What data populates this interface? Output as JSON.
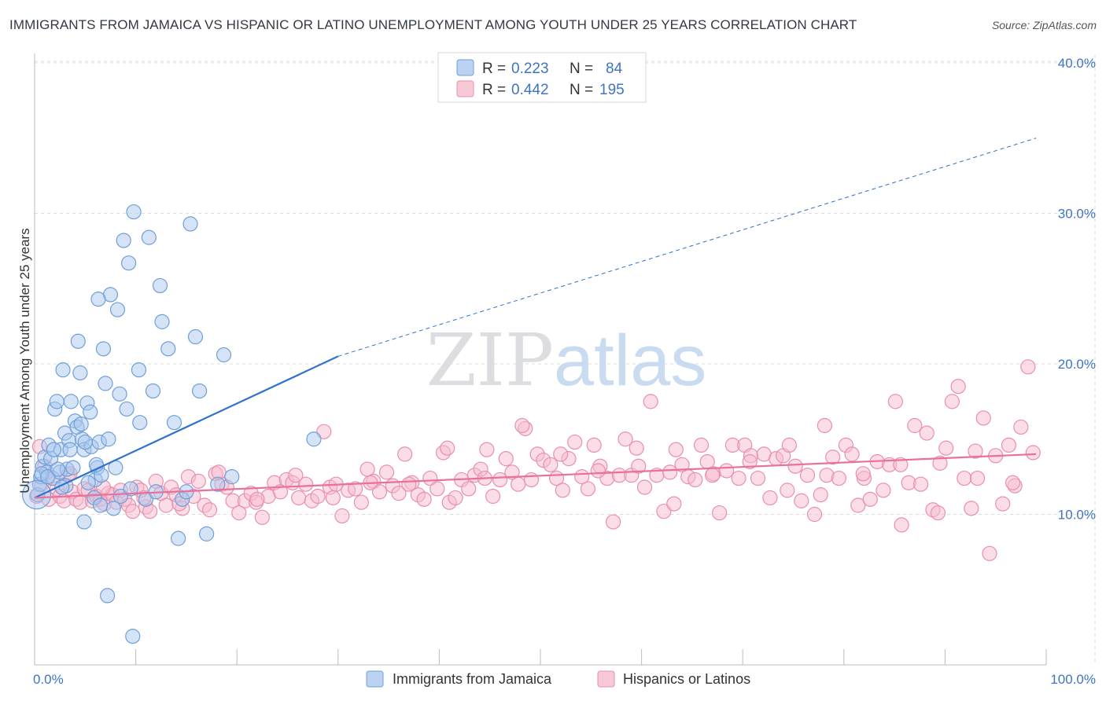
{
  "title": "IMMIGRANTS FROM JAMAICA VS HISPANIC OR LATINO UNEMPLOYMENT AMONG YOUTH UNDER 25 YEARS CORRELATION CHART",
  "source": "Source: ZipAtlas.com",
  "watermark": "ZIPatlas",
  "colors": {
    "blue_fill": "#aac8ee",
    "blue_stroke": "#6f9fd8",
    "blue_line": "#2f72cc",
    "pink_fill": "#f5bccd",
    "pink_stroke": "#ea8fab",
    "pink_line": "#e8709a",
    "tick_text": "#3d74c4",
    "grid": "#dddddd"
  },
  "legend": {
    "rows": [
      {
        "r_label": "R =",
        "r_value": "0.223",
        "n_label": "N =",
        "n_value": "84"
      },
      {
        "r_label": "R =",
        "r_value": "0.442",
        "n_label": "N =",
        "n_value": "195"
      }
    ]
  },
  "bottom_legend": [
    "Immigrants from Jamaica",
    "Hispanics or Latinos"
  ],
  "chart_data": {
    "type": "scatter",
    "title": "IMMIGRANTS FROM JAMAICA VS HISPANIC OR LATINO UNEMPLOYMENT AMONG YOUTH UNDER 25 YEARS CORRELATION CHART",
    "xlabel": "",
    "ylabel": "Unemployment Among Youth under 25 years",
    "xlim": [
      0,
      100
    ],
    "ylim": [
      0,
      42
    ],
    "x_tick_labels": [
      "0.0%",
      "100.0%"
    ],
    "y_ticks": [
      10,
      20,
      30,
      40
    ],
    "y_tick_labels": [
      "10.0%",
      "20.0%",
      "30.0%",
      "40.0%"
    ],
    "grid": true,
    "legend_position": "top-center",
    "series": [
      {
        "name": "Immigrants from Jamaica",
        "r": 0.223,
        "n": 84,
        "trend": {
          "x0": 0,
          "y0": 11.1,
          "x1": 30,
          "y1": 20.5,
          "dashed_to_x": 99,
          "dashed_to_y": 35.0
        },
        "points": [
          [
            0.3,
            11.3
          ],
          [
            0.5,
            12.0
          ],
          [
            0.6,
            12.5
          ],
          [
            0.8,
            13.2
          ],
          [
            1.0,
            13.8
          ],
          [
            1.2,
            12.8
          ],
          [
            1.4,
            14.6
          ],
          [
            1.6,
            13.7
          ],
          [
            1.8,
            12.4
          ],
          [
            2.0,
            17.0
          ],
          [
            2.2,
            17.5
          ],
          [
            2.5,
            12.8
          ],
          [
            2.6,
            14.3
          ],
          [
            2.8,
            19.6
          ],
          [
            3.0,
            15.4
          ],
          [
            3.2,
            13.0
          ],
          [
            3.4,
            14.9
          ],
          [
            3.5,
            14.3
          ],
          [
            3.6,
            17.5
          ],
          [
            3.8,
            13.1
          ],
          [
            4.0,
            16.2
          ],
          [
            4.2,
            15.8
          ],
          [
            4.3,
            21.5
          ],
          [
            4.5,
            19.4
          ],
          [
            4.7,
            15.0
          ],
          [
            4.9,
            14.3
          ],
          [
            5.2,
            17.4
          ],
          [
            5.5,
            16.8
          ],
          [
            5.6,
            14.5
          ],
          [
            5.9,
            11.1
          ],
          [
            6.0,
            12.3
          ],
          [
            6.2,
            13.1
          ],
          [
            6.4,
            14.8
          ],
          [
            6.6,
            12.6
          ],
          [
            6.8,
            21.0
          ],
          [
            7.0,
            18.7
          ],
          [
            7.3,
            15.0
          ],
          [
            7.5,
            24.6
          ],
          [
            7.8,
            10.4
          ],
          [
            8.0,
            13.1
          ],
          [
            8.4,
            18.0
          ],
          [
            8.8,
            28.2
          ],
          [
            9.1,
            17.0
          ],
          [
            9.3,
            26.7
          ],
          [
            9.8,
            30.1
          ],
          [
            10.3,
            19.6
          ],
          [
            10.4,
            16.1
          ],
          [
            11.3,
            28.4
          ],
          [
            11.7,
            18.2
          ],
          [
            12.4,
            25.2
          ],
          [
            12.6,
            22.8
          ],
          [
            13.2,
            21.0
          ],
          [
            13.8,
            16.1
          ],
          [
            14.6,
            11.0
          ],
          [
            15.4,
            29.3
          ],
          [
            15.9,
            21.8
          ],
          [
            16.3,
            18.2
          ],
          [
            18.1,
            12.0
          ],
          [
            18.7,
            20.6
          ],
          [
            19.5,
            12.5
          ],
          [
            27.6,
            15.0
          ],
          [
            0.7,
            12.7
          ],
          [
            1.3,
            12.5
          ],
          [
            2.3,
            13.0
          ],
          [
            3.1,
            11.9
          ],
          [
            4.6,
            16.0
          ],
          [
            5.0,
            14.8
          ],
          [
            6.5,
            10.6
          ],
          [
            8.5,
            11.2
          ],
          [
            9.5,
            11.7
          ],
          [
            11.0,
            11.0
          ],
          [
            12.0,
            11.5
          ],
          [
            14.2,
            8.4
          ],
          [
            15.0,
            11.5
          ],
          [
            17.0,
            8.7
          ],
          [
            5.3,
            12.1
          ],
          [
            6.1,
            13.3
          ],
          [
            7.2,
            4.6
          ],
          [
            8.2,
            23.6
          ],
          [
            9.7,
            1.9
          ],
          [
            6.3,
            24.3
          ],
          [
            4.9,
            9.5
          ],
          [
            2.7,
            11.8
          ],
          [
            1.9,
            14.3
          ]
        ]
      },
      {
        "name": "Hispanics or Latinos",
        "r": 0.442,
        "n": 195,
        "trend": {
          "x0": 0,
          "y0": 11.1,
          "x1": 99,
          "y1": 14.0
        },
        "points": [
          [
            0.2,
            11.2
          ],
          [
            0.5,
            14.5
          ],
          [
            0.7,
            12.0
          ],
          [
            1.0,
            13.2
          ],
          [
            1.4,
            11.0
          ],
          [
            1.8,
            12.4
          ],
          [
            2.2,
            11.7
          ],
          [
            2.5,
            11.2
          ],
          [
            2.9,
            10.9
          ],
          [
            3.3,
            12.6
          ],
          [
            3.7,
            11.5
          ],
          [
            4.1,
            11.0
          ],
          [
            4.5,
            10.8
          ],
          [
            4.9,
            11.7
          ],
          [
            5.3,
            11.6
          ],
          [
            5.7,
            10.9
          ],
          [
            6.1,
            11.2
          ],
          [
            6.5,
            11.0
          ],
          [
            6.9,
            10.7
          ],
          [
            7.3,
            11.4
          ],
          [
            7.7,
            11.3
          ],
          [
            8.1,
            10.8
          ],
          [
            8.5,
            11.6
          ],
          [
            8.9,
            11.0
          ],
          [
            9.3,
            10.6
          ],
          [
            9.7,
            10.2
          ],
          [
            10.1,
            11.8
          ],
          [
            10.5,
            11.6
          ],
          [
            11.0,
            10.5
          ],
          [
            11.4,
            10.2
          ],
          [
            12.0,
            12.2
          ],
          [
            12.5,
            11.4
          ],
          [
            13.0,
            10.6
          ],
          [
            13.5,
            11.8
          ],
          [
            14.0,
            11.3
          ],
          [
            14.6,
            10.4
          ],
          [
            15.2,
            12.5
          ],
          [
            15.7,
            11.2
          ],
          [
            16.2,
            12.2
          ],
          [
            16.8,
            10.6
          ],
          [
            17.3,
            10.3
          ],
          [
            17.9,
            12.7
          ],
          [
            18.5,
            12.0
          ],
          [
            19.0,
            11.8
          ],
          [
            19.6,
            10.9
          ],
          [
            20.2,
            10.1
          ],
          [
            20.8,
            10.9
          ],
          [
            21.4,
            11.4
          ],
          [
            21.9,
            10.8
          ],
          [
            22.5,
            9.8
          ],
          [
            23.1,
            11.2
          ],
          [
            23.7,
            12.1
          ],
          [
            24.3,
            11.5
          ],
          [
            24.9,
            12.3
          ],
          [
            25.5,
            12.1
          ],
          [
            26.1,
            11.1
          ],
          [
            26.8,
            12.0
          ],
          [
            27.4,
            10.9
          ],
          [
            28.0,
            11.2
          ],
          [
            28.6,
            15.5
          ],
          [
            29.2,
            11.8
          ],
          [
            29.8,
            12.0
          ],
          [
            30.4,
            9.9
          ],
          [
            31.0,
            11.6
          ],
          [
            31.7,
            11.7
          ],
          [
            32.3,
            10.8
          ],
          [
            32.9,
            13.0
          ],
          [
            33.5,
            12.2
          ],
          [
            34.1,
            11.5
          ],
          [
            34.8,
            12.8
          ],
          [
            35.4,
            11.9
          ],
          [
            36.0,
            11.4
          ],
          [
            36.6,
            14.0
          ],
          [
            37.3,
            12.1
          ],
          [
            37.9,
            11.3
          ],
          [
            38.5,
            11.0
          ],
          [
            39.1,
            12.4
          ],
          [
            39.8,
            11.7
          ],
          [
            40.4,
            14.1
          ],
          [
            41.0,
            10.8
          ],
          [
            41.6,
            11.1
          ],
          [
            42.2,
            12.3
          ],
          [
            42.9,
            11.7
          ],
          [
            43.5,
            12.6
          ],
          [
            44.1,
            13.0
          ],
          [
            44.7,
            14.3
          ],
          [
            45.3,
            11.2
          ],
          [
            46.0,
            12.3
          ],
          [
            46.6,
            13.7
          ],
          [
            47.2,
            12.8
          ],
          [
            47.8,
            12.0
          ],
          [
            48.5,
            15.7
          ],
          [
            49.1,
            12.3
          ],
          [
            49.7,
            14.0
          ],
          [
            50.3,
            13.6
          ],
          [
            51.0,
            13.3
          ],
          [
            51.6,
            12.4
          ],
          [
            52.2,
            11.6
          ],
          [
            52.8,
            13.7
          ],
          [
            53.4,
            14.8
          ],
          [
            54.1,
            12.5
          ],
          [
            54.7,
            11.7
          ],
          [
            55.3,
            14.6
          ],
          [
            55.9,
            13.2
          ],
          [
            56.6,
            12.4
          ],
          [
            57.2,
            9.5
          ],
          [
            57.8,
            12.6
          ],
          [
            58.4,
            15.0
          ],
          [
            59.0,
            12.6
          ],
          [
            59.7,
            13.2
          ],
          [
            60.3,
            11.8
          ],
          [
            60.9,
            17.5
          ],
          [
            61.5,
            12.6
          ],
          [
            62.2,
            10.2
          ],
          [
            62.8,
            12.8
          ],
          [
            63.4,
            14.3
          ],
          [
            64.0,
            13.3
          ],
          [
            64.6,
            12.5
          ],
          [
            65.3,
            12.3
          ],
          [
            65.9,
            14.6
          ],
          [
            66.5,
            13.5
          ],
          [
            67.1,
            12.7
          ],
          [
            67.7,
            10.1
          ],
          [
            68.4,
            12.9
          ],
          [
            69.0,
            14.6
          ],
          [
            69.6,
            12.4
          ],
          [
            70.2,
            14.6
          ],
          [
            70.8,
            13.9
          ],
          [
            71.5,
            12.4
          ],
          [
            72.1,
            14.0
          ],
          [
            72.7,
            11.1
          ],
          [
            73.3,
            13.7
          ],
          [
            74.0,
            13.9
          ],
          [
            74.6,
            14.6
          ],
          [
            75.2,
            13.2
          ],
          [
            75.8,
            10.9
          ],
          [
            76.4,
            12.6
          ],
          [
            77.1,
            10.0
          ],
          [
            77.7,
            11.3
          ],
          [
            78.3,
            12.6
          ],
          [
            78.9,
            13.8
          ],
          [
            79.5,
            12.4
          ],
          [
            80.2,
            14.6
          ],
          [
            80.8,
            14.0
          ],
          [
            81.4,
            10.6
          ],
          [
            82.0,
            12.4
          ],
          [
            82.6,
            11.0
          ],
          [
            83.3,
            13.5
          ],
          [
            83.9,
            11.6
          ],
          [
            84.5,
            13.3
          ],
          [
            85.1,
            17.5
          ],
          [
            85.7,
            9.3
          ],
          [
            86.4,
            12.1
          ],
          [
            87.0,
            15.9
          ],
          [
            87.6,
            12.0
          ],
          [
            88.2,
            15.4
          ],
          [
            88.8,
            10.3
          ],
          [
            89.5,
            13.4
          ],
          [
            90.1,
            14.4
          ],
          [
            90.7,
            17.5
          ],
          [
            91.3,
            18.5
          ],
          [
            91.9,
            12.4
          ],
          [
            92.6,
            10.4
          ],
          [
            93.2,
            12.4
          ],
          [
            93.8,
            16.4
          ],
          [
            94.4,
            7.4
          ],
          [
            95.0,
            13.9
          ],
          [
            95.7,
            10.7
          ],
          [
            96.3,
            14.6
          ],
          [
            96.9,
            11.9
          ],
          [
            97.5,
            15.8
          ],
          [
            98.2,
            19.8
          ],
          [
            98.7,
            14.1
          ],
          [
            3.5,
            12.7
          ],
          [
            6.8,
            11.8
          ],
          [
            10.8,
            11.1
          ],
          [
            14.3,
            10.7
          ],
          [
            18.2,
            12.8
          ],
          [
            22.0,
            11.0
          ],
          [
            25.8,
            12.6
          ],
          [
            29.5,
            11.1
          ],
          [
            33.2,
            12.1
          ],
          [
            37.0,
            12.0
          ],
          [
            40.8,
            14.4
          ],
          [
            44.5,
            12.4
          ],
          [
            48.2,
            15.9
          ],
          [
            52.0,
            14.0
          ],
          [
            55.7,
            12.9
          ],
          [
            59.5,
            14.4
          ],
          [
            63.2,
            10.7
          ],
          [
            67.0,
            12.6
          ],
          [
            70.7,
            13.5
          ],
          [
            74.4,
            11.6
          ],
          [
            78.1,
            15.9
          ],
          [
            81.9,
            12.7
          ],
          [
            85.6,
            13.3
          ],
          [
            89.3,
            10.1
          ],
          [
            93.0,
            14.2
          ],
          [
            96.7,
            12.1
          ]
        ]
      }
    ]
  }
}
